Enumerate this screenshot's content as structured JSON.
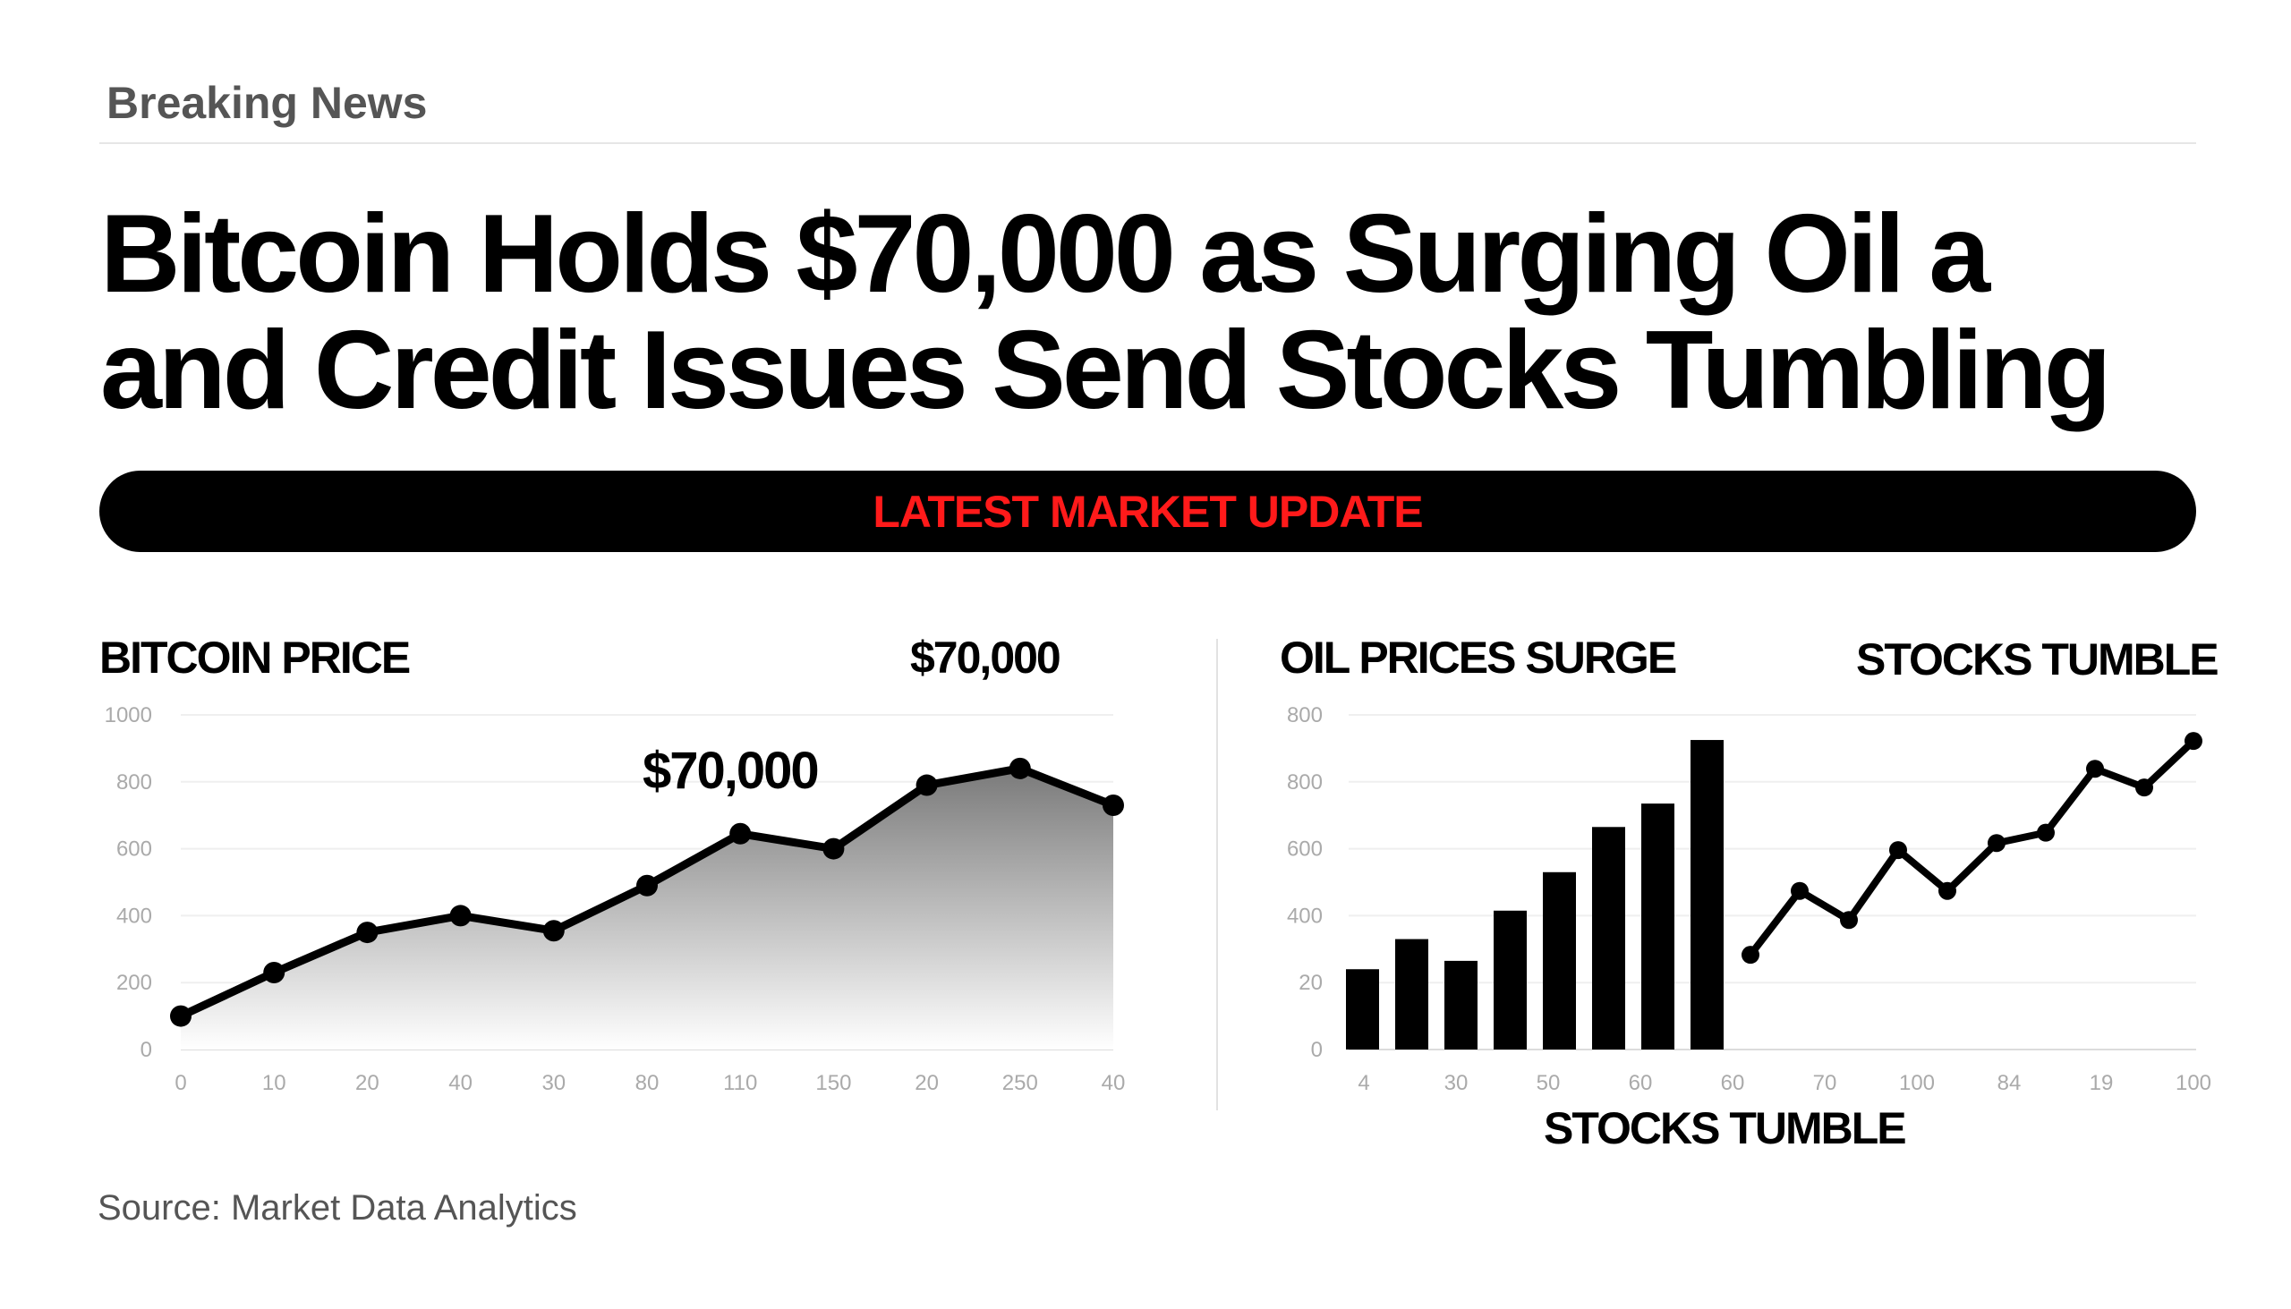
{
  "header": {
    "kicker": "Breaking News"
  },
  "headline": {
    "line1": "Bitcoin Holds $70,000 as Surging Oil a",
    "line2": "and Credit Issues Send Stocks Tumbling"
  },
  "banner": {
    "label": "LATEST MARKET UPDATE",
    "text_color": "#ff1a1a"
  },
  "footer": {
    "source": "Source: Market Data Analytics"
  },
  "chart_data": [
    {
      "type": "area",
      "title": "BITCOIN PRICE",
      "headline_value": "$70,000",
      "annotation": "$70,000",
      "categories": [
        "0",
        "10",
        "20",
        "40",
        "30",
        "80",
        "110",
        "150",
        "20",
        "250",
        "40"
      ],
      "values": [
        100,
        230,
        350,
        400,
        355,
        490,
        645,
        600,
        790,
        840,
        730
      ],
      "ylim": [
        0,
        1000
      ],
      "yticks": [
        "0",
        "200",
        "400",
        "600",
        "800",
        "1000"
      ],
      "grid": true,
      "line_color": "#000000"
    },
    {
      "type": "bar",
      "title": "OIL PRICES SURGE",
      "values": [
        240,
        330,
        265,
        415,
        530,
        665,
        735,
        925
      ],
      "ylim": [
        0,
        1000
      ],
      "yticks": [
        "0",
        "20",
        "400",
        "600",
        "800",
        "800"
      ],
      "grid": true,
      "bar_color": "#000000"
    },
    {
      "type": "line",
      "title": "STOCKS TUMBLE",
      "xlabel": "STOCKS TUMBLE",
      "values": [
        283,
        474,
        387,
        596,
        474,
        617,
        648,
        839,
        783,
        922
      ],
      "ylim": [
        0,
        1000
      ],
      "line_color": "#000000"
    }
  ],
  "right_xticks": [
    "4",
    "30",
    "50",
    "60",
    "60",
    "70",
    "100",
    "84",
    "19",
    "100"
  ]
}
